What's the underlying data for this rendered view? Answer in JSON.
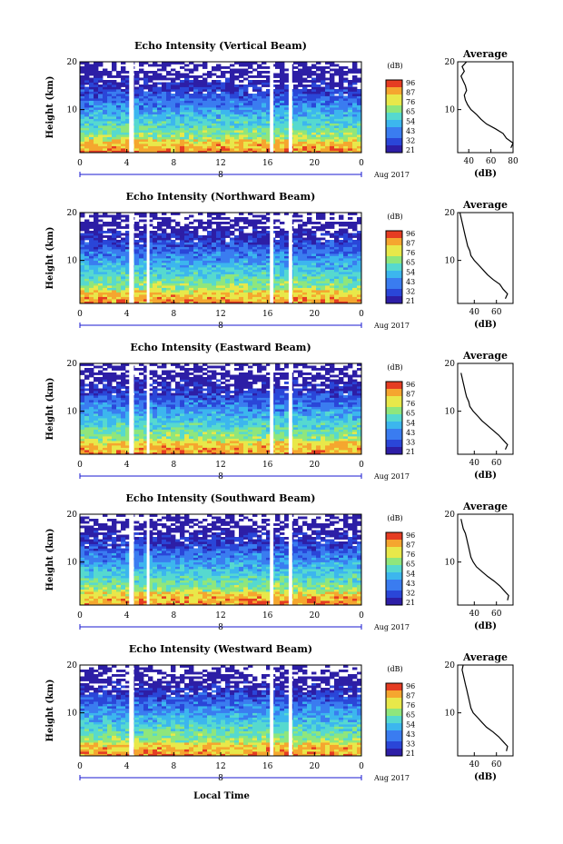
{
  "chart_data": [
    {
      "type": "heatmap",
      "title": "Echo Intensity (Vertical Beam)",
      "ylabel": "Height (km)",
      "ylim": [
        1,
        20
      ],
      "y_ticks": [
        "10",
        "20"
      ],
      "x_ticks": [
        "0",
        "4",
        "8",
        "12",
        "16",
        "20",
        "0"
      ],
      "date_label": "8",
      "date_suffix": "Aug 2017",
      "colorbar": {
        "unit": "(dB)",
        "ticks": [
          "96",
          "87",
          "76",
          "65",
          "54",
          "43",
          "32",
          "21"
        ]
      },
      "gaps_hours": [
        [
          4.2,
          4.6
        ],
        [
          16.2,
          16.5
        ],
        [
          17.8,
          18.1
        ]
      ],
      "average": {
        "title": "Average",
        "xlabel": "(dB)",
        "x_ticks": [
          "40",
          "60",
          "80"
        ],
        "xlim": [
          30,
          80
        ],
        "profile": {
          "height_km": [
            2,
            3,
            4,
            5,
            6,
            7,
            8,
            9,
            10,
            11,
            12,
            13,
            14,
            15,
            16,
            17,
            18,
            19,
            20
          ],
          "db": [
            78,
            80,
            74,
            71,
            64,
            56,
            51,
            47,
            42,
            39,
            37,
            36,
            38,
            37,
            35,
            33,
            36,
            34,
            38
          ]
        }
      }
    },
    {
      "type": "heatmap",
      "title": "Echo Intensity (Northward Beam)",
      "ylabel": "Height (km)",
      "ylim": [
        1,
        20
      ],
      "y_ticks": [
        "10",
        "20"
      ],
      "x_ticks": [
        "0",
        "4",
        "8",
        "12",
        "16",
        "20",
        "0"
      ],
      "date_label": "8",
      "date_suffix": "Aug 2017",
      "colorbar": {
        "unit": "(dB)",
        "ticks": [
          "96",
          "87",
          "76",
          "65",
          "54",
          "43",
          "32",
          "21"
        ]
      },
      "gaps_hours": [
        [
          4.2,
          4.6
        ],
        [
          5.7,
          5.9
        ],
        [
          16.2,
          16.5
        ],
        [
          17.8,
          18.1
        ]
      ],
      "average": {
        "title": "Average",
        "xlabel": "(dB)",
        "x_ticks": [
          "40",
          "60"
        ],
        "xlim": [
          25,
          75
        ],
        "profile": {
          "height_km": [
            2,
            3,
            4,
            5,
            6,
            7,
            8,
            9,
            10,
            11,
            12,
            13,
            14,
            15,
            16,
            17,
            18,
            19,
            20
          ],
          "db": [
            68,
            70,
            66,
            63,
            57,
            52,
            48,
            44,
            40,
            37,
            36,
            34,
            33,
            32,
            31,
            30,
            29,
            28,
            27
          ]
        }
      }
    },
    {
      "type": "heatmap",
      "title": "Echo Intensity (Eastward Beam)",
      "ylabel": "Height (km)",
      "ylim": [
        1,
        20
      ],
      "y_ticks": [
        "10",
        "20"
      ],
      "x_ticks": [
        "0",
        "4",
        "8",
        "12",
        "16",
        "20",
        "0"
      ],
      "date_label": "8",
      "date_suffix": "Aug 2017",
      "colorbar": {
        "unit": "(dB)",
        "ticks": [
          "96",
          "87",
          "76",
          "65",
          "54",
          "43",
          "33",
          "21"
        ]
      },
      "gaps_hours": [
        [
          4.2,
          4.6
        ],
        [
          5.7,
          5.9
        ],
        [
          16.2,
          16.5
        ],
        [
          17.8,
          18.1
        ]
      ],
      "average": {
        "title": "Average",
        "xlabel": "(dB)",
        "x_ticks": [
          "40",
          "60"
        ],
        "xlim": [
          25,
          75
        ],
        "profile": {
          "height_km": [
            2,
            3,
            4,
            5,
            6,
            7,
            8,
            9,
            10,
            11,
            12,
            13,
            14,
            15,
            16,
            17,
            18
          ],
          "db": [
            68,
            70,
            66,
            62,
            57,
            52,
            47,
            43,
            39,
            36,
            35,
            33,
            32,
            31,
            30,
            29,
            28
          ]
        }
      }
    },
    {
      "type": "heatmap",
      "title": "Echo Intensity (Southward Beam)",
      "ylabel": "Height (km)",
      "ylim": [
        1,
        20
      ],
      "y_ticks": [
        "10",
        "20"
      ],
      "x_ticks": [
        "0",
        "4",
        "8",
        "12",
        "16",
        "20",
        "0"
      ],
      "date_label": "8",
      "date_suffix": "Aug 2017",
      "colorbar": {
        "unit": "(dB)",
        "ticks": [
          "96",
          "87",
          "76",
          "65",
          "54",
          "43",
          "32",
          "21"
        ]
      },
      "gaps_hours": [
        [
          4.2,
          4.6
        ],
        [
          5.7,
          5.9
        ],
        [
          16.2,
          16.5
        ],
        [
          17.8,
          18.1
        ]
      ],
      "average": {
        "title": "Average",
        "xlabel": "(dB)",
        "x_ticks": [
          "40",
          "60"
        ],
        "xlim": [
          25,
          75
        ],
        "profile": {
          "height_km": [
            2,
            3,
            4,
            5,
            6,
            7,
            8,
            9,
            10,
            11,
            12,
            13,
            14,
            15,
            16,
            17,
            18,
            19
          ],
          "db": [
            70,
            71,
            67,
            63,
            58,
            52,
            47,
            42,
            39,
            37,
            36,
            35,
            34,
            33,
            32,
            30,
            29,
            28
          ]
        }
      }
    },
    {
      "type": "heatmap",
      "title": "Echo Intensity (Westward Beam)",
      "ylabel": "Height (km)",
      "ylim": [
        1,
        20
      ],
      "y_ticks": [
        "10",
        "20"
      ],
      "x_ticks": [
        "0",
        "4",
        "8",
        "12",
        "16",
        "20",
        "0"
      ],
      "date_label": "8",
      "date_suffix": "Aug 2017",
      "colorbar": {
        "unit": "(dB)",
        "ticks": [
          "96",
          "87",
          "76",
          "65",
          "54",
          "43",
          "33",
          "21"
        ]
      },
      "gaps_hours": [
        [
          4.2,
          4.6
        ],
        [
          16.2,
          16.5
        ],
        [
          17.8,
          18.1
        ]
      ],
      "average": {
        "title": "Average",
        "xlabel": "(dB)",
        "x_ticks": [
          "40",
          "60"
        ],
        "xlim": [
          25,
          75
        ],
        "profile": {
          "height_km": [
            2,
            3,
            4,
            5,
            6,
            7,
            8,
            9,
            10,
            11,
            12,
            13,
            14,
            15,
            16,
            17,
            18,
            19,
            20
          ],
          "db": [
            69,
            70,
            66,
            62,
            57,
            51,
            47,
            43,
            39,
            37,
            36,
            35,
            34,
            33,
            32,
            31,
            30,
            29,
            30
          ]
        }
      }
    }
  ],
  "xlabel": "Local Time",
  "colors": {
    "colormap": [
      "#2d1ea6",
      "#2a46d8",
      "#3a7cf0",
      "#3cb6ee",
      "#56d9cf",
      "#8fe67c",
      "#e8e84a",
      "#f5a62f",
      "#e53c22"
    ],
    "gap": "#ffffff",
    "axis": "#000000",
    "date_axis": "#1a1ad0"
  }
}
